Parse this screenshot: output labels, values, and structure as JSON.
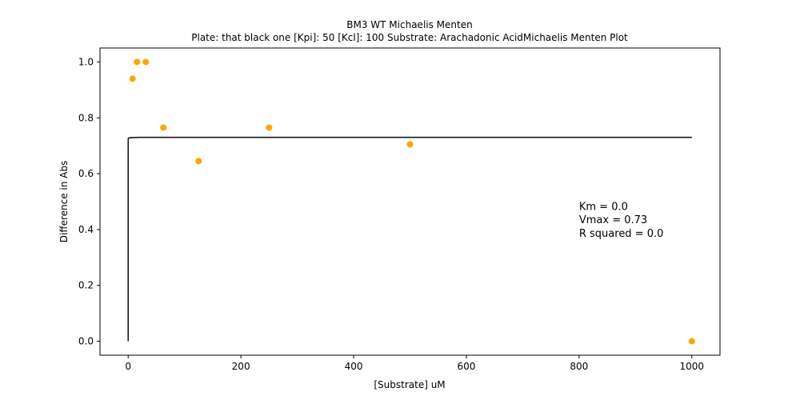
{
  "chart_data": {
    "type": "scatter",
    "title": "BM3 WT Michaelis Menten",
    "subtitle": "Plate: that black one  [Kpi]: 50  [Kcl]: 100  Substrate: Arachadonic AcidMichaelis Menten Plot",
    "xlabel": "[Substrate] uM",
    "ylabel": "Difference in Abs",
    "xlim": [
      -50,
      1050
    ],
    "ylim": [
      -0.05,
      1.05
    ],
    "xticks": [
      0,
      200,
      400,
      600,
      800,
      1000
    ],
    "xtick_labels": [
      "0",
      "200",
      "400",
      "600",
      "800",
      "1000"
    ],
    "yticks": [
      0.0,
      0.2,
      0.4,
      0.6,
      0.8,
      1.0
    ],
    "ytick_labels": [
      "0.0",
      "0.2",
      "0.4",
      "0.6",
      "0.8",
      "1.0"
    ],
    "grid": false,
    "series": [
      {
        "kind": "scatter",
        "color": "#ffa500",
        "x": [
          7.8,
          15.6,
          31.25,
          62.5,
          125,
          250,
          500,
          1000
        ],
        "y": [
          0.94,
          1.0,
          1.0,
          0.765,
          0.645,
          0.765,
          0.705,
          0.0
        ]
      },
      {
        "kind": "line",
        "color": "#1a1a1a",
        "x": [
          0,
          0.001,
          0.005,
          0.02,
          0.1,
          1,
          5,
          20,
          100,
          1000
        ],
        "y": [
          0.0,
          0.4,
          0.65,
          0.71,
          0.725,
          0.728,
          0.729,
          0.73,
          0.73,
          0.73
        ]
      }
    ],
    "annotations": [
      {
        "text": "Km = 0.0",
        "x": 800,
        "y": 0.47
      },
      {
        "text": "Vmax = 0.73",
        "x": 800,
        "y": 0.422
      },
      {
        "text": "R squared = 0.0",
        "x": 800,
        "y": 0.374
      }
    ]
  }
}
